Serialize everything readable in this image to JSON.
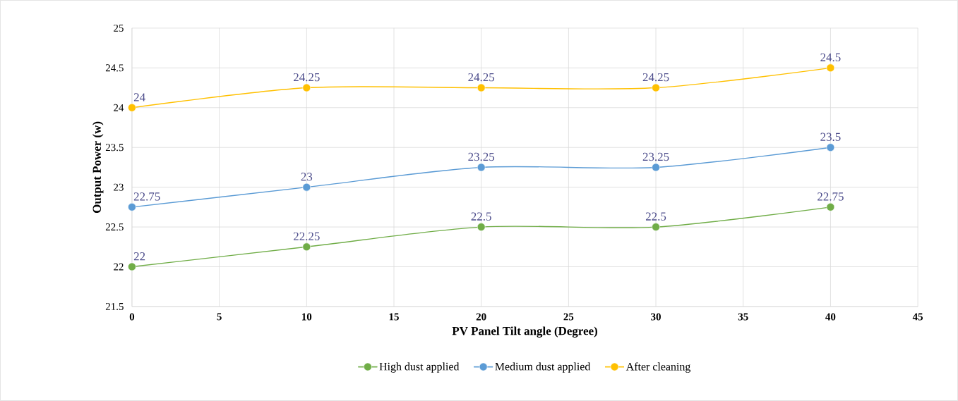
{
  "chart_data": {
    "type": "line",
    "xlabel": "PV Panel Tilt angle (Degree)",
    "ylabel": "Output Power (w)",
    "x": [
      0,
      10,
      20,
      30,
      40
    ],
    "series": [
      {
        "name": "High dust applied",
        "color": "#70ad47",
        "values": [
          22,
          22.25,
          22.5,
          22.5,
          22.75
        ]
      },
      {
        "name": "Medium dust applied",
        "color": "#5b9bd5",
        "values": [
          22.75,
          23,
          23.25,
          23.25,
          23.5
        ]
      },
      {
        "name": "After cleaning",
        "color": "#ffc000",
        "values": [
          24,
          24.25,
          24.25,
          24.25,
          24.5
        ]
      }
    ],
    "xlim": [
      0,
      45
    ],
    "xticks": [
      0,
      5,
      10,
      15,
      20,
      25,
      30,
      35,
      40,
      45
    ],
    "ylim": [
      21.5,
      25
    ],
    "yticks": [
      21.5,
      22,
      22.5,
      23,
      23.5,
      24,
      24.5,
      25
    ],
    "grid": true,
    "legend": "bottom",
    "marker": "circle",
    "line_style": "solid",
    "data_labels": true
  }
}
